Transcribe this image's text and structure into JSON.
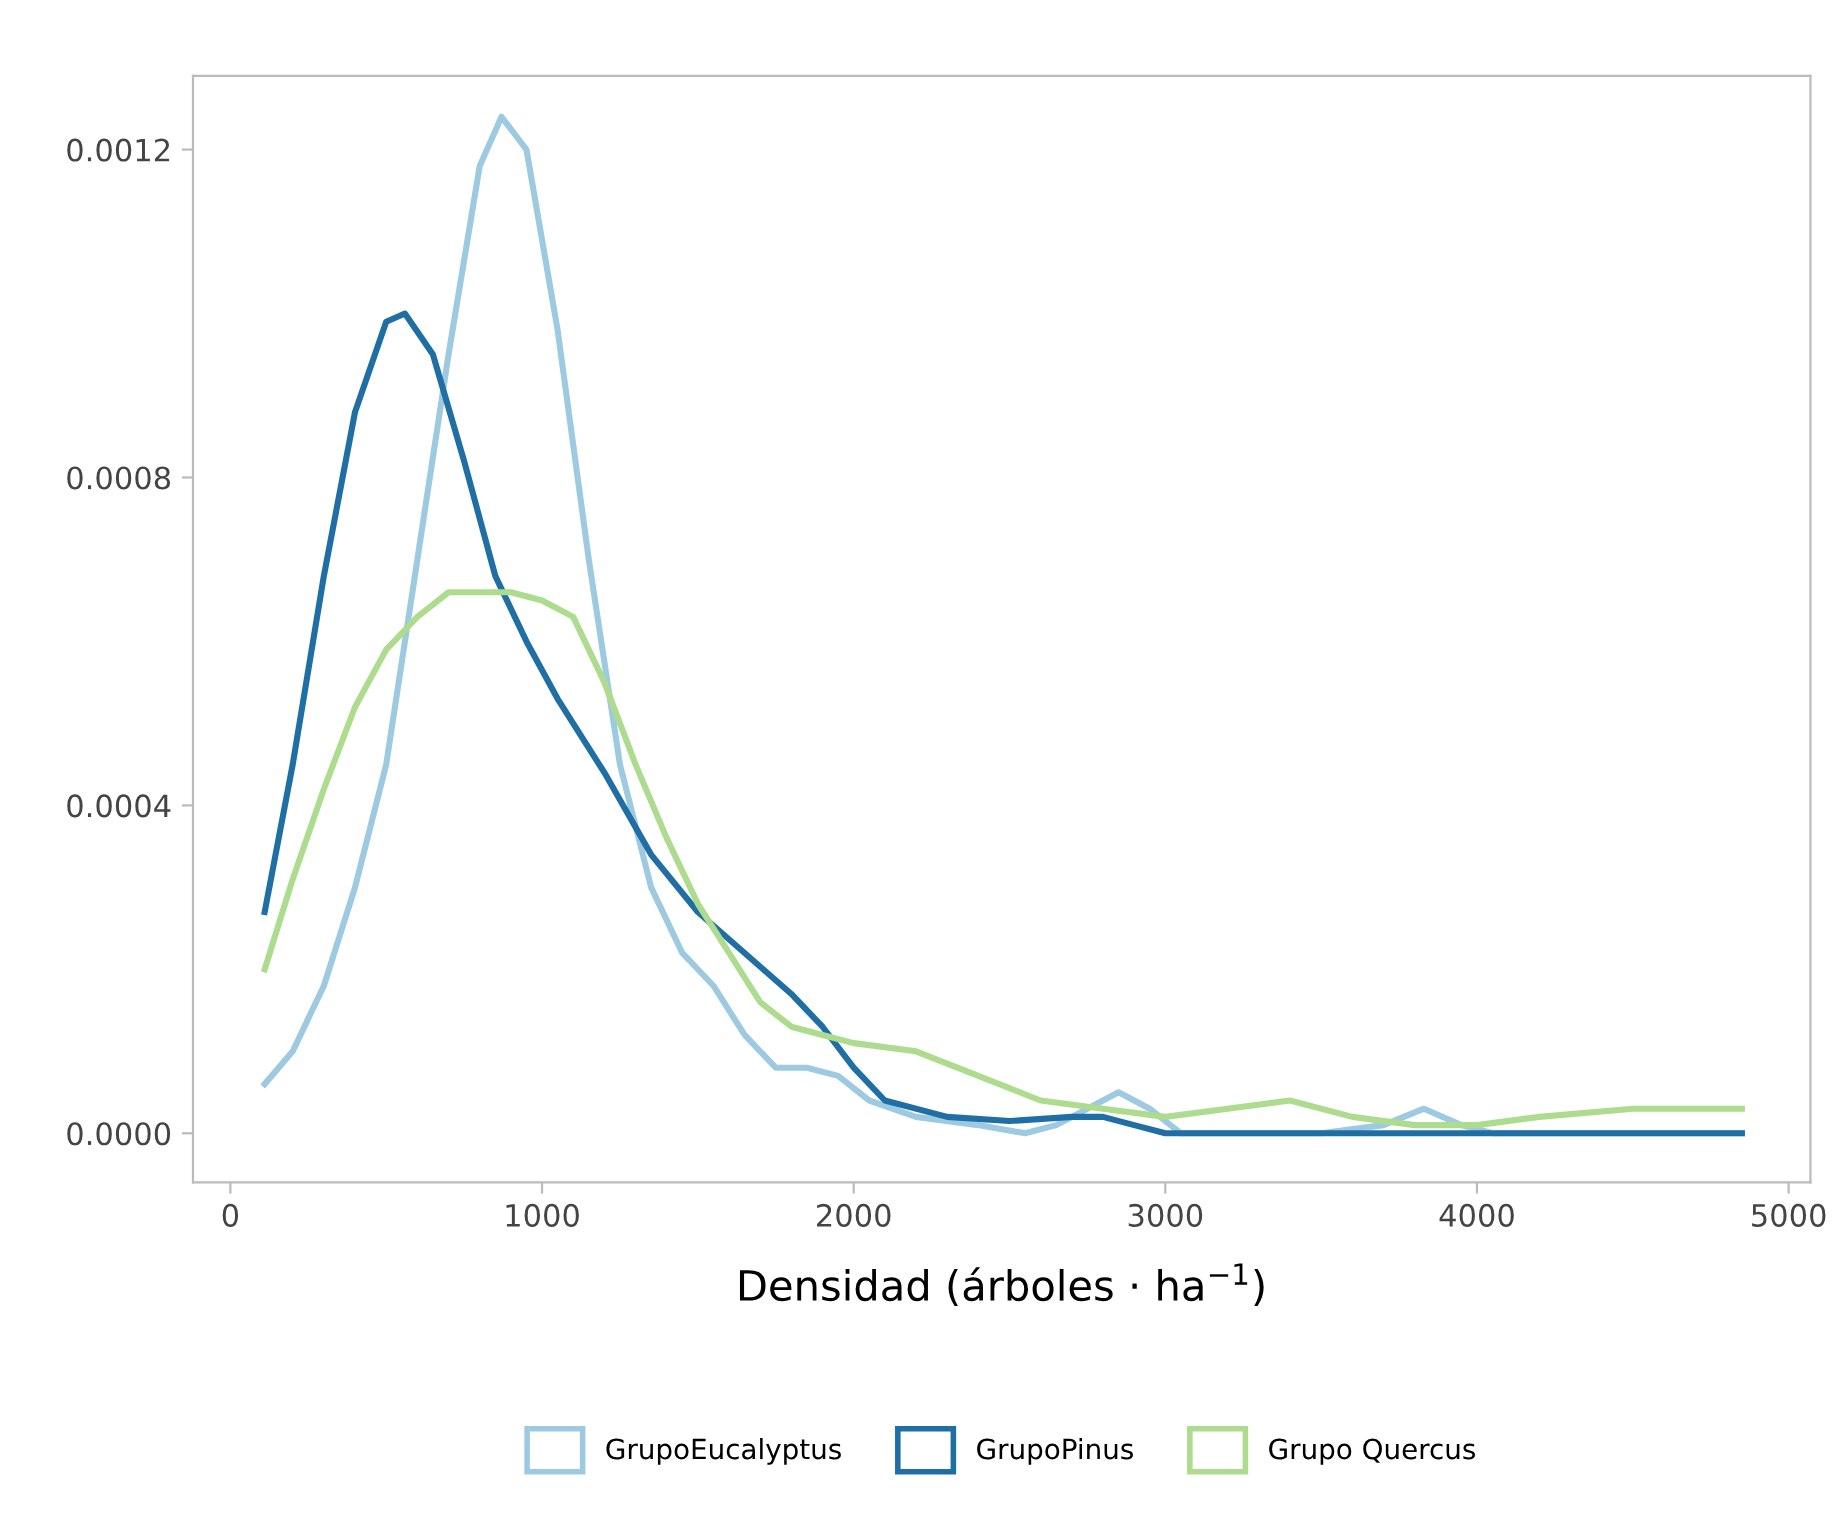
{
  "chart_data": {
    "type": "line",
    "xlabel": "Densidad (árboles · ha$^{−1}$)",
    "xlim": [
      -120,
      5070
    ],
    "xticks": [
      0,
      1000,
      2000,
      3000,
      4000,
      5000
    ],
    "ylim": [
      -6e-05,
      0.00129
    ],
    "yticks": [
      {
        "value": 0,
        "label": "0.0000"
      },
      {
        "value": 0.0004,
        "label": "0.0004"
      },
      {
        "value": 0.0008,
        "label": "0.0008"
      },
      {
        "value": 0.0012,
        "label": "0.0012"
      }
    ],
    "grid": false,
    "legend": "bottom",
    "marker": "none",
    "line_style": "solid",
    "series": [
      {
        "name": "GrupoEucalyptus",
        "color": "#9ecae1",
        "x": [
          110,
          200,
          300,
          400,
          500,
          600,
          700,
          800,
          870,
          950,
          1050,
          1150,
          1250,
          1350,
          1450,
          1550,
          1650,
          1750,
          1850,
          1950,
          2050,
          2200,
          2400,
          2550,
          2650,
          2750,
          2850,
          2950,
          3050,
          3500,
          3700,
          3830,
          3950,
          4050,
          4850
        ],
        "values": [
          6e-05,
          0.0001,
          0.00018,
          0.0003,
          0.00045,
          0.0007,
          0.00095,
          0.00118,
          0.00124,
          0.0012,
          0.00098,
          0.0007,
          0.00045,
          0.0003,
          0.00022,
          0.00018,
          0.00012,
          8e-05,
          8e-05,
          7e-05,
          4e-05,
          2e-05,
          1e-05,
          0.0,
          1e-05,
          3e-05,
          5e-05,
          3e-05,
          0.0,
          0.0,
          1e-05,
          3e-05,
          1e-05,
          0.0,
          0.0
        ]
      },
      {
        "name": "GrupoPinus",
        "color": "#1f6fa5",
        "x": [
          110,
          200,
          300,
          400,
          500,
          560,
          650,
          750,
          850,
          950,
          1050,
          1200,
          1350,
          1500,
          1650,
          1800,
          1900,
          2000,
          2100,
          2300,
          2500,
          2700,
          2800,
          2900,
          3000,
          4850
        ],
        "values": [
          0.00027,
          0.00045,
          0.00068,
          0.00088,
          0.00099,
          0.001,
          0.00095,
          0.00082,
          0.00068,
          0.0006,
          0.00053,
          0.00044,
          0.00034,
          0.00027,
          0.00022,
          0.00017,
          0.00013,
          8e-05,
          4e-05,
          2e-05,
          1.5e-05,
          2e-05,
          2e-05,
          1e-05,
          0.0,
          0.0
        ]
      },
      {
        "name": "Grupo Quercus",
        "color": "#addc8e",
        "x": [
          110,
          200,
          300,
          400,
          500,
          600,
          700,
          800,
          900,
          1000,
          1100,
          1200,
          1300,
          1400,
          1500,
          1600,
          1700,
          1800,
          1900,
          2000,
          2200,
          2400,
          2600,
          2800,
          3000,
          3200,
          3400,
          3600,
          3800,
          4000,
          4200,
          4500,
          4700,
          4850
        ],
        "values": [
          0.0002,
          0.00031,
          0.00042,
          0.00052,
          0.00059,
          0.00063,
          0.00066,
          0.00066,
          0.00066,
          0.00065,
          0.00063,
          0.00055,
          0.00045,
          0.00036,
          0.00028,
          0.00022,
          0.00016,
          0.00013,
          0.00012,
          0.00011,
          0.0001,
          7e-05,
          4e-05,
          3e-05,
          2e-05,
          3e-05,
          4e-05,
          2e-05,
          1e-05,
          1e-05,
          2e-05,
          3e-05,
          3e-05,
          3e-05
        ]
      }
    ]
  }
}
